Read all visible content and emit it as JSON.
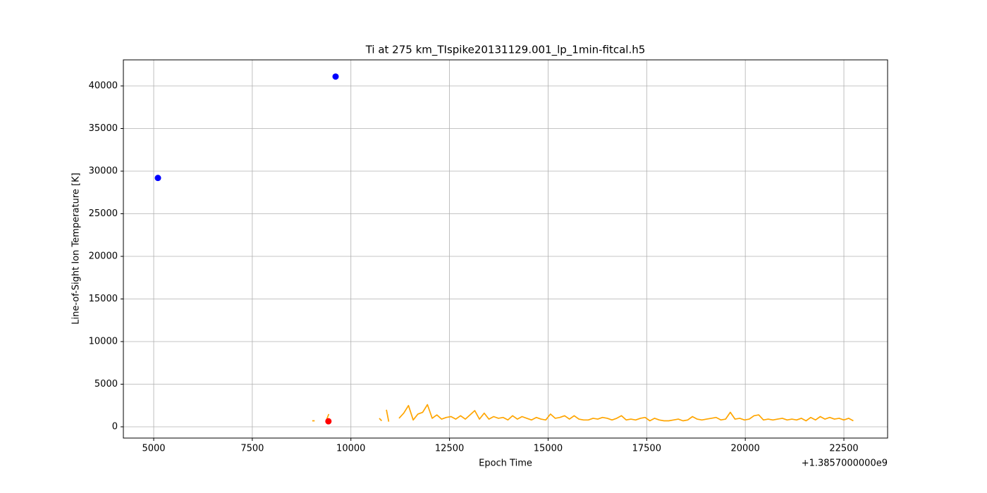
{
  "chart_data": {
    "type": "line",
    "title": "Ti at 275 km_TIspike20131129.001_lp_1min-fitcal.h5",
    "xlabel": "Epoch Time",
    "ylabel": "Line-of-Sight Ion Temperature [K]",
    "x_offset_label": "+1.3857000000e9",
    "xlim": [
      4231,
      23608
    ],
    "ylim": [
      -1322,
      43058
    ],
    "xticks": [
      5000,
      7500,
      10000,
      12500,
      15000,
      17500,
      20000,
      22500
    ],
    "yticks": [
      0,
      5000,
      10000,
      15000,
      20000,
      25000,
      30000,
      35000,
      40000
    ],
    "grid": true,
    "series": [
      {
        "type": "line",
        "color": "#ffa500",
        "x": [
          9020,
          9080,
          9200,
          9380,
          9440,
          10600,
          10720,
          10780,
          10840,
          10900,
          10960,
          11100,
          11220,
          11340,
          11460,
          11580,
          11700,
          11820,
          11940,
          12060,
          12180,
          12300,
          12420,
          12540,
          12660,
          12780,
          12900,
          13020,
          13140,
          13260,
          13380,
          13500,
          13620,
          13740,
          13860,
          13980,
          14100,
          14220,
          14340,
          14460,
          14580,
          14700,
          14820,
          14940,
          15060,
          15180,
          15300,
          15420,
          15540,
          15660,
          15780,
          15900,
          16020,
          16140,
          16260,
          16380,
          16500,
          16620,
          16740,
          16860,
          16980,
          17100,
          17220,
          17340,
          17460,
          17580,
          17700,
          17820,
          17940,
          18060,
          18180,
          18300,
          18420,
          18540,
          18660,
          18780,
          18900,
          19020,
          19140,
          19260,
          19380,
          19500,
          19620,
          19740,
          19860,
          19980,
          20100,
          20220,
          20340,
          20460,
          20580,
          20700,
          20820,
          20940,
          21060,
          21180,
          21300,
          21420,
          21540,
          21660,
          21780,
          21900,
          22020,
          22140,
          22260,
          22380,
          22500,
          22620,
          22740
        ],
        "values": [
          700,
          700,
          null,
          800,
          1500,
          null,
          1000,
          700,
          null,
          2000,
          600,
          null,
          1000,
          1600,
          2500,
          800,
          1500,
          1700,
          2600,
          1000,
          1400,
          900,
          1100,
          1200,
          900,
          1300,
          900,
          1400,
          1900,
          900,
          1600,
          900,
          1200,
          1000,
          1100,
          800,
          1300,
          900,
          1200,
          1000,
          800,
          1100,
          900,
          800,
          1500,
          1000,
          1100,
          1300,
          900,
          1300,
          900,
          800,
          800,
          1000,
          900,
          1100,
          1000,
          800,
          1000,
          1300,
          800,
          900,
          800,
          1000,
          1100,
          700,
          1000,
          800,
          700,
          700,
          800,
          900,
          700,
          800,
          1200,
          900,
          800,
          900,
          1000,
          1100,
          800,
          900,
          1700,
          900,
          1000,
          800,
          900,
          1300,
          1400,
          800,
          900,
          800,
          900,
          1000,
          800,
          900,
          800,
          1000,
          700,
          1100,
          800,
          1200,
          900,
          1100,
          900,
          1000,
          800,
          1000,
          700
        ]
      },
      {
        "type": "scatter",
        "color": "#0000ff",
        "x": [
          5107,
          9612
        ],
        "values": [
          29200,
          41100
        ]
      },
      {
        "type": "scatter",
        "color": "#ff0000",
        "x": [
          9430
        ],
        "values": [
          650
        ]
      }
    ]
  }
}
